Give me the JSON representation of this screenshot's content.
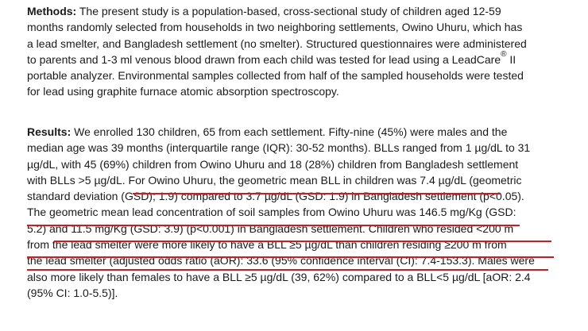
{
  "methods": {
    "label": "Methods:",
    "lines": [
      " The present study is a population-based, cross-sectional study of children aged 12-59",
      "months randomly selected from households in two neighboring settlements, Owino Uhuru, which has",
      "a lead smelter, and Bangladesh settlement (no smelter). Structured questionnaires were administered",
      "to parents and 1-3 ml venous blood drawn from each child was tested for lead using a LeadCare",
      "portable analyzer. Environmental samples collected from half of the sampled households were tested",
      "for lead using graphite furnace atomic absorption spectroscopy."
    ],
    "trademark": "®",
    "model": " II"
  },
  "results": {
    "label": "Results:",
    "lines": [
      " We enrolled 130 children, 65 from each settlement. Fifty-nine (45%) were males and the",
      "median age was 39 months (interquartile range (IQR): 30-52 months). BLLs ranged from 1 µg/dL to 31",
      "µg/dL, with 45 (69%) children from Owino Uhuru and 18 (28%) children from Bangladesh settlement",
      "with BLLs >5 µg/dL. For Owino Uhuru, the geometric mean BLL in children was 7.4 µg/dL (geometric",
      "standard deviation (GSD); 1.9) compared to 3.7 µg/dL (GSD: 1.9) in Bangladesh settlement (p<0.05).",
      "The geometric mean lead concentration of soil samples from Owino Uhuru was 146.5 mg/Kg (GSD:",
      "5.2) and 11.5 mg/Kg (GSD: 3.9) (p<0.001) in Bangladesh settlement. Children who resided <200 m",
      "from the lead smelter were more likely to have a BLL ≥5 µg/dL than children residing ≥200 m from",
      "the lead smelter (adjusted odds ratio (aOR): 33.6 (95% confidence interval (CI): 7.4-153.3). Males were",
      "also more likely than females to have a BLL ≥5 µg/dL (39, 62%) compared to a BLL<5 µg/dL [aOR: 2.4",
      "(95% CI: 1.0-5.5)]."
    ]
  },
  "colors": {
    "underline": "#d81818",
    "text": "#1a1a1a"
  }
}
